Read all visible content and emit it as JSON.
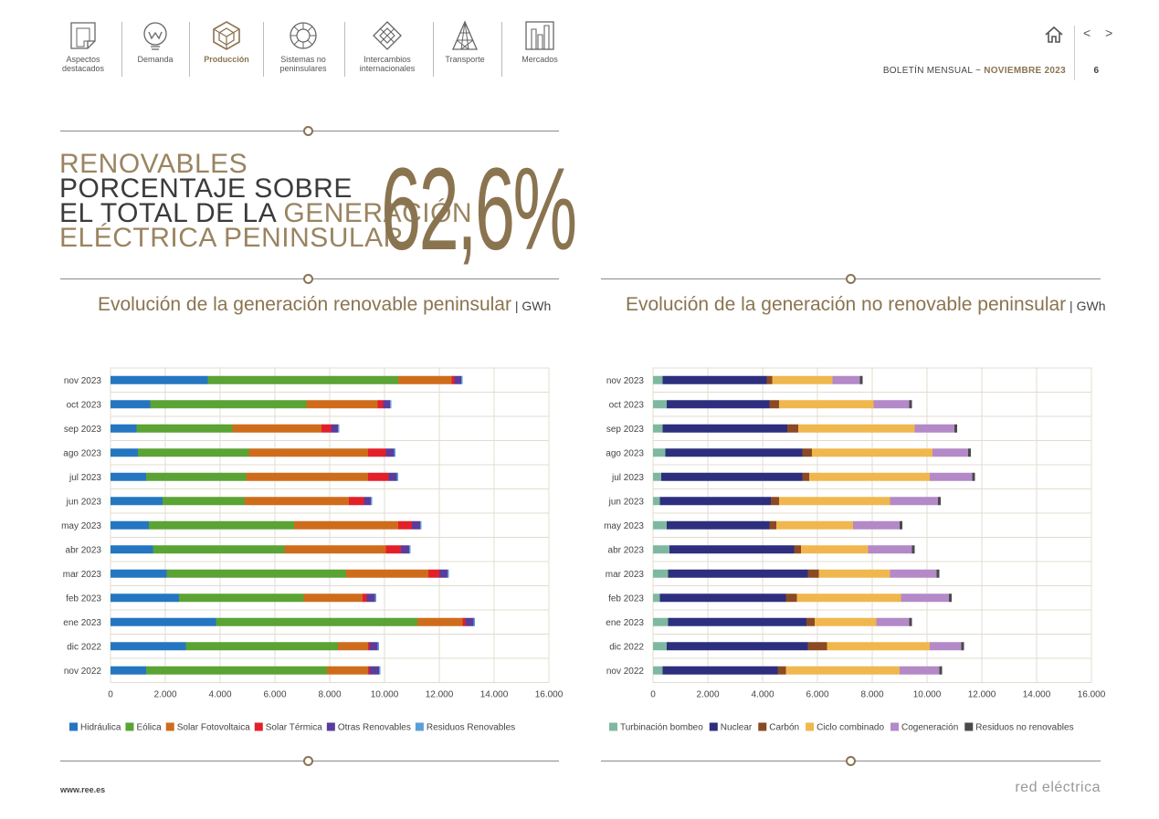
{
  "nav": {
    "items": [
      {
        "label1": "Aspectos",
        "label2": "destacados",
        "icon": "document-corner-icon"
      },
      {
        "label1": "Demanda",
        "label2": "",
        "icon": "bulb-w-icon"
      },
      {
        "label1": "Producción",
        "label2": "",
        "icon": "cube-icon",
        "active": true
      },
      {
        "label1": "Sistemas no",
        "label2": "peninsulares",
        "icon": "ring-icon"
      },
      {
        "label1": "Intercambios",
        "label2": "internacionales",
        "icon": "diamond-arrows-icon"
      },
      {
        "label1": "Transporte",
        "label2": "",
        "icon": "tower-icon"
      },
      {
        "label1": "Mercados",
        "label2": "",
        "icon": "bars-icon"
      }
    ]
  },
  "header": {
    "bulletin": "BOLETÍN MENSUAL",
    "separator": "~",
    "month": "NOVIEMBRE 2023",
    "page": "6",
    "arrows": "< >"
  },
  "kpi": {
    "line1": "RENOVABLES",
    "line2": "PORCENTAJE SOBRE",
    "line3a": "EL TOTAL DE LA ",
    "line3b": "GENERACIÓN",
    "line4": "ELÉCTRICA PENINSULAR",
    "value": "62,6",
    "pct": "%"
  },
  "colors": {
    "accent": "#8a7450",
    "hidraulica": "#2576c0",
    "eolica": "#5aa334",
    "solar_fv": "#cf6c1c",
    "solar_termica": "#e3202a",
    "otras_renovables": "#5b3c9c",
    "residuos_renovables": "#5b9fd9",
    "turbinacion": "#7fb8a1",
    "nuclear": "#2d2f7e",
    "carbon": "#8a4a24",
    "ciclo": "#f0b74e",
    "cogeneracion": "#b389c8",
    "residuos_no_renov": "#4a4a4a"
  },
  "chart_data": [
    {
      "type": "bar",
      "orientation": "horizontal",
      "stacked": true,
      "title": "Evolución de la generación renovable peninsular",
      "unit": "GWh",
      "categories": [
        "nov 2023",
        "oct 2023",
        "sep 2023",
        "ago 2023",
        "jul 2023",
        "jun 2023",
        "may 2023",
        "abr 2023",
        "mar 2023",
        "feb 2023",
        "ene 2023",
        "dic 2022",
        "nov 2022"
      ],
      "xlim": [
        0,
        16000
      ],
      "xticks": [
        0,
        2000,
        4000,
        6000,
        8000,
        10000,
        12000,
        14000,
        16000
      ],
      "xtick_labels": [
        "0",
        "2.000",
        "4.000",
        "6.000",
        "8.000",
        "10.000",
        "12.000",
        "14.000",
        "16.000"
      ],
      "grid": true,
      "legend_position": "bottom",
      "series": [
        {
          "name": "Hidráulica",
          "color": "#2576c0",
          "values": [
            3550,
            1450,
            950,
            1000,
            1300,
            1900,
            1400,
            1550,
            2050,
            2500,
            3850,
            2750,
            1300
          ]
        },
        {
          "name": "Eólica",
          "color": "#5aa334",
          "values": [
            6950,
            5700,
            3500,
            4050,
            3650,
            3000,
            5300,
            4800,
            6550,
            4550,
            7350,
            5550,
            6600
          ]
        },
        {
          "name": "Solar Fotovoltaica",
          "color": "#cf6c1c",
          "values": [
            1950,
            2600,
            3250,
            4350,
            4450,
            3800,
            3800,
            3700,
            3000,
            2150,
            1650,
            1100,
            1500
          ]
        },
        {
          "name": "Solar Térmica",
          "color": "#e3202a",
          "values": [
            100,
            200,
            350,
            650,
            750,
            550,
            500,
            550,
            400,
            150,
            100,
            50,
            50
          ]
        },
        {
          "name": "Otras Renovables",
          "color": "#5b3c9c",
          "values": [
            250,
            250,
            250,
            300,
            300,
            250,
            300,
            300,
            300,
            300,
            300,
            300,
            350
          ]
        },
        {
          "name": "Residuos Renovables",
          "color": "#5b9fd9",
          "values": [
            50,
            50,
            50,
            50,
            50,
            50,
            50,
            50,
            50,
            50,
            50,
            50,
            50
          ]
        }
      ]
    },
    {
      "type": "bar",
      "orientation": "horizontal",
      "stacked": true,
      "title": "Evolución de la generación no renovable peninsular",
      "unit": "GWh",
      "categories": [
        "nov 2023",
        "oct 2023",
        "sep 2023",
        "ago 2023",
        "jul 2023",
        "jun 2023",
        "may 2023",
        "abr 2023",
        "mar 2023",
        "feb 2023",
        "ene 2023",
        "dic 2022",
        "nov 2022"
      ],
      "xlim": [
        0,
        16000
      ],
      "xticks": [
        0,
        2000,
        4000,
        6000,
        8000,
        10000,
        12000,
        14000,
        16000
      ],
      "xtick_labels": [
        "0",
        "2.000",
        "4.000",
        "6.000",
        "8.000",
        "10.000",
        "12.000",
        "14.000",
        "16.000"
      ],
      "grid": true,
      "legend_position": "bottom",
      "series": [
        {
          "name": "Turbinación bombeo",
          "color": "#7fb8a1",
          "values": [
            350,
            500,
            350,
            450,
            300,
            250,
            500,
            600,
            550,
            250,
            550,
            500,
            350
          ]
        },
        {
          "name": "Nuclear",
          "color": "#2d2f7e",
          "values": [
            3800,
            3750,
            4550,
            5000,
            5150,
            4050,
            3750,
            4550,
            5100,
            4600,
            5050,
            5150,
            4200
          ]
        },
        {
          "name": "Carbón",
          "color": "#8a4a24",
          "values": [
            200,
            350,
            400,
            350,
            250,
            300,
            250,
            250,
            400,
            400,
            300,
            700,
            300
          ]
        },
        {
          "name": "Ciclo combinado",
          "color": "#f0b74e",
          "values": [
            2200,
            3450,
            4250,
            4400,
            4400,
            4050,
            2800,
            2450,
            2600,
            3800,
            2250,
            3750,
            4150
          ]
        },
        {
          "name": "Cogeneración",
          "color": "#b389c8",
          "values": [
            1000,
            1300,
            1450,
            1300,
            1550,
            1750,
            1700,
            1600,
            1700,
            1750,
            1200,
            1150,
            1450
          ]
        },
        {
          "name": "Residuos no renovables",
          "color": "#4a4a4a",
          "values": [
            100,
            100,
            100,
            100,
            100,
            100,
            100,
            100,
            100,
            100,
            100,
            100,
            100
          ]
        }
      ]
    }
  ],
  "footer": {
    "url": "www.ree.es",
    "brand": "red eléctrica"
  }
}
